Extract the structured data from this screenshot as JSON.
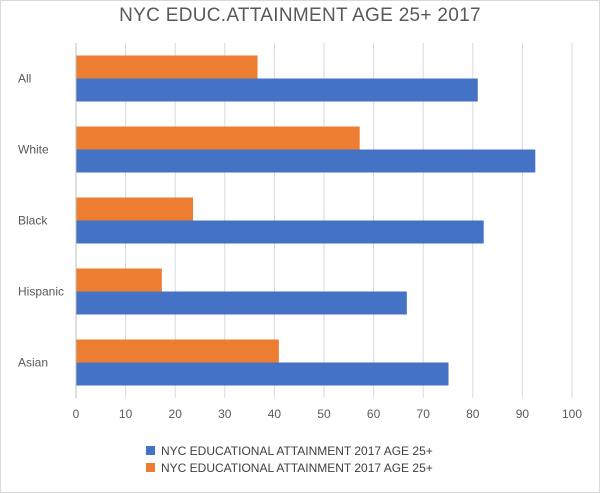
{
  "chart_data": {
    "type": "bar",
    "orientation": "horizontal",
    "title": "NYC EDUC.ATTAINMENT AGE 25+ 2017",
    "categories": [
      "All",
      "White",
      "Black",
      "Hispanic",
      "Asian"
    ],
    "series": [
      {
        "name": "NYC EDUCATIONAL ATTAINMENT 2017 AGE 25+",
        "color": "#4472c4",
        "values": [
          81,
          92.6,
          82.2,
          66.7,
          75.1
        ]
      },
      {
        "name": "NYC EDUCATIONAL ATTAINMENT 2017 AGE 25+",
        "color": "#ed7d31",
        "values": [
          36.6,
          57.2,
          23.6,
          17.3,
          40.9
        ]
      }
    ],
    "xlim": [
      0,
      100
    ],
    "xticks": [
      "0",
      "10",
      "20",
      "30",
      "40",
      "50",
      "60",
      "70",
      "80",
      "90",
      "100"
    ],
    "grid": true,
    "legend_position": "bottom"
  }
}
